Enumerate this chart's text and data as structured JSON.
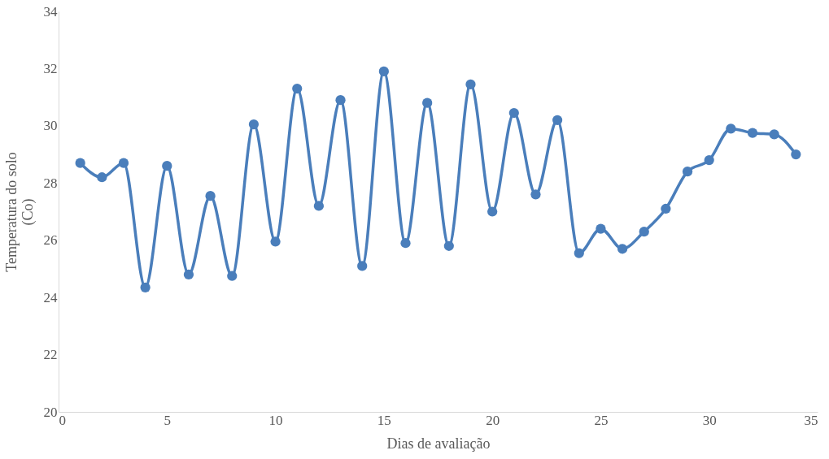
{
  "chart_data": {
    "type": "line",
    "xlabel": "Dias de avaliação",
    "ylabel": "Temperatura do solo\n(Co)",
    "x": [
      1,
      2,
      3,
      4,
      5,
      6,
      7,
      8,
      9,
      10,
      11,
      12,
      13,
      14,
      15,
      16,
      17,
      18,
      19,
      20,
      21,
      22,
      23,
      24,
      25,
      26,
      27,
      28,
      29,
      30,
      31,
      32,
      33,
      34
    ],
    "series": [
      {
        "color": "#4a7ebb",
        "values": [
          28.7,
          28.2,
          28.7,
          24.35,
          28.6,
          24.8,
          27.55,
          24.75,
          30.05,
          25.95,
          31.3,
          27.2,
          30.9,
          25.1,
          31.9,
          25.9,
          30.8,
          25.8,
          31.45,
          27.0,
          30.45,
          27.6,
          30.2,
          25.55,
          26.4,
          25.7,
          26.3,
          27.1,
          28.4,
          28.8,
          29.9,
          29.75,
          29.7,
          29.0
        ]
      }
    ],
    "xlim": [
      0,
      35
    ],
    "xticks": [
      0,
      5,
      10,
      15,
      20,
      25,
      30,
      35
    ],
    "ylim": [
      20,
      34
    ],
    "yticks": [
      20,
      22,
      24,
      26,
      28,
      30,
      32,
      34
    ],
    "grid": false,
    "marker": "circle",
    "line_style": "solid"
  }
}
